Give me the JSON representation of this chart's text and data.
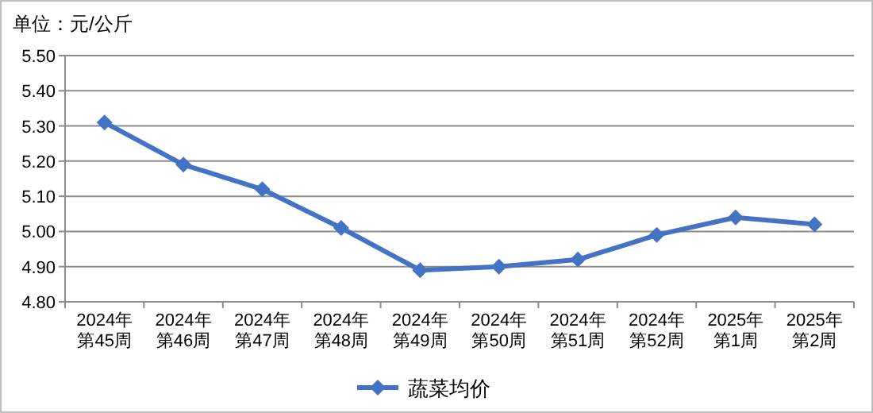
{
  "chart_data": {
    "type": "line",
    "title": "单位：元/公斤",
    "categories": [
      "2024年第45周",
      "2024年第46周",
      "2024年第47周",
      "2024年第48周",
      "2024年第49周",
      "2024年第50周",
      "2024年第51周",
      "2024年第52周",
      "2025年第1周",
      "2025年第2周"
    ],
    "series": [
      {
        "name": "蔬菜均价",
        "color": "#4472c4",
        "values": [
          5.31,
          5.19,
          5.12,
          5.01,
          4.89,
          4.9,
          4.92,
          4.99,
          5.04,
          5.02
        ]
      }
    ],
    "ylim": [
      4.8,
      5.5
    ],
    "yticks": [
      {
        "value": 4.8,
        "label": "4.80"
      },
      {
        "value": 4.9,
        "label": "4.90"
      },
      {
        "value": 5.0,
        "label": "5.00"
      },
      {
        "value": 5.1,
        "label": "5.10"
      },
      {
        "value": 5.2,
        "label": "5.20"
      },
      {
        "value": 5.3,
        "label": "5.30"
      },
      {
        "value": 5.4,
        "label": "5.40"
      },
      {
        "value": 5.5,
        "label": "5.50"
      }
    ],
    "grid": "y",
    "legend": "bottom",
    "marker": "diamond",
    "line_style": "solid"
  }
}
